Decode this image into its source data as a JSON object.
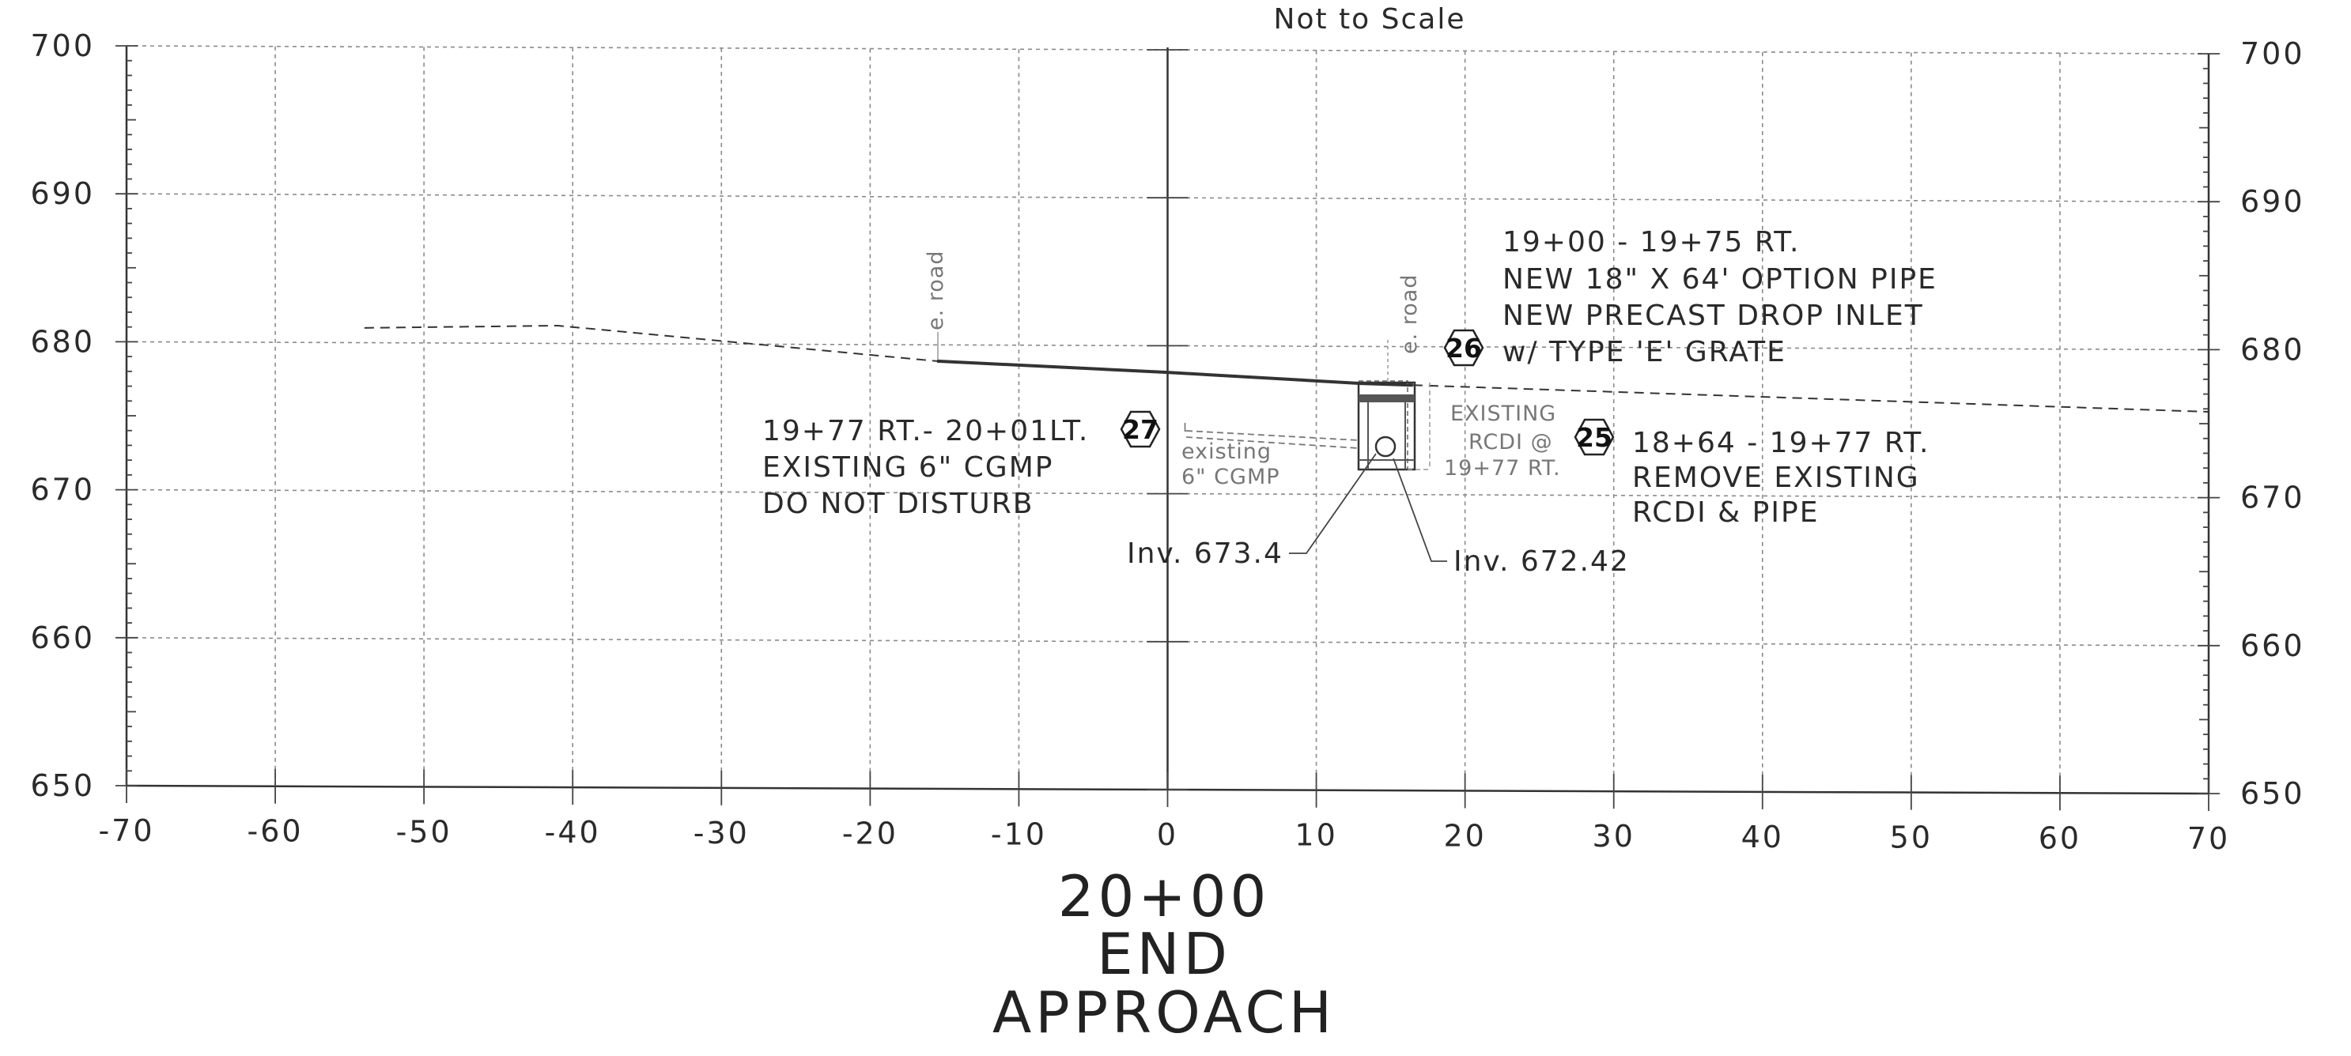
{
  "header": {
    "scale_note": "Not to Scale"
  },
  "section_title": {
    "station": "20+00",
    "line2": "END",
    "line3": "APPROACH"
  },
  "chart_data": {
    "type": "line",
    "title": "",
    "xlim": [
      -70,
      70
    ],
    "ylim": [
      650,
      700
    ],
    "x_ticks": [
      "-70",
      "-60",
      "-50",
      "-40",
      "-30",
      "-20",
      "-10",
      "0",
      "10",
      "20",
      "30",
      "40",
      "50",
      "60",
      "70"
    ],
    "y_ticks": [
      "650",
      "660",
      "670",
      "680",
      "690",
      "700"
    ],
    "grid": true,
    "series": [
      {
        "name": "",
        "style": "dashed",
        "points": [
          [
            -54,
            681
          ],
          [
            -41,
            681.2
          ],
          [
            -15.5,
            678.9
          ]
        ]
      },
      {
        "name": "",
        "style": "solid",
        "points": [
          [
            -15.5,
            678.9
          ],
          [
            0,
            678.2
          ],
          [
            13,
            677.5
          ],
          [
            16.5,
            677.4
          ]
        ]
      },
      {
        "name": "",
        "style": "dashed",
        "points": [
          [
            16.5,
            677.4
          ],
          [
            70,
            675.8
          ]
        ]
      }
    ]
  },
  "annotations": {
    "road_label_left": "e. road",
    "road_label_right": "e. road",
    "note_26": {
      "badge": "26",
      "lines": [
        "19+00 - 19+75 RT.",
        "NEW 18\" X 64' OPTION PIPE",
        "NEW PRECAST DROP INLET",
        "w/ TYPE 'E' GRATE"
      ]
    },
    "note_27": {
      "badge": "27",
      "lines": [
        "19+77 RT.- 20+01LT.",
        "EXISTING 6\" CGMP",
        "DO NOT DISTURB"
      ]
    },
    "note_25": {
      "badge": "25",
      "lines": [
        "18+64 - 19+77 RT.",
        "REMOVE EXISTING",
        "RCDI & PIPE"
      ]
    },
    "existing_pipe_label": [
      "existing",
      "6\" CGMP"
    ],
    "existing_rcdi_label": [
      "EXISTING",
      "RCDI @",
      "19+77 RT."
    ],
    "inv_left": "Inv. 673.4",
    "inv_right": "Inv. 672.42"
  }
}
